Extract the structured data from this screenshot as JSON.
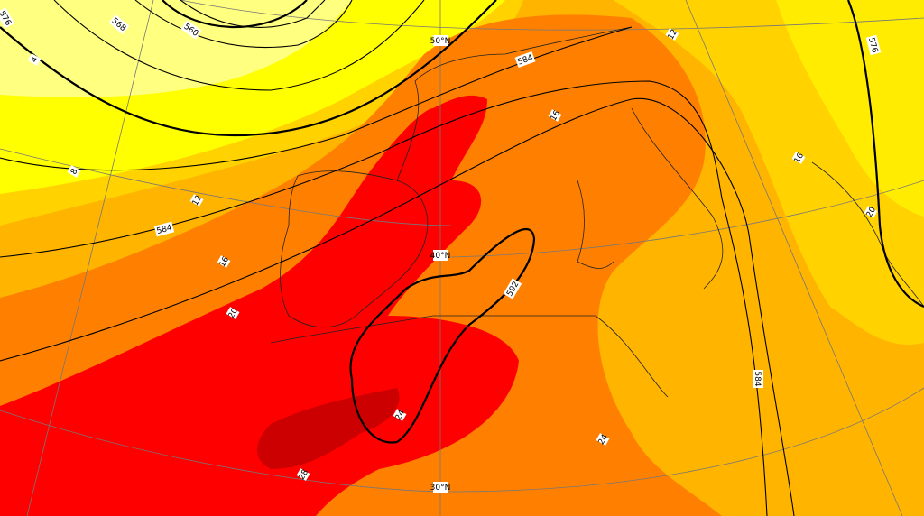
{
  "map": {
    "contour_labels": [
      "576",
      "568",
      "560",
      "584",
      "584",
      "592",
      "584",
      "576"
    ],
    "latitude_labels": [
      "50°N",
      "40°N",
      "30°N"
    ],
    "temperature_labels": [
      "4",
      "8",
      "12",
      "16",
      "20",
      "24",
      "28",
      "12",
      "16",
      "16",
      "20",
      "24"
    ]
  }
}
